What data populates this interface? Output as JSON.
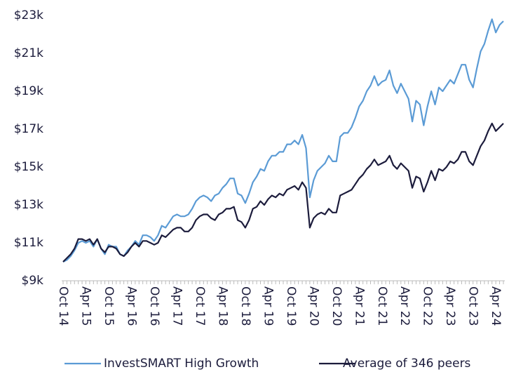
{
  "chart_data": {
    "type": "line",
    "categories": [
      "Oct 14",
      null,
      null,
      null,
      null,
      null,
      "Apr 15",
      null,
      null,
      null,
      null,
      null,
      "Oct 15",
      null,
      null,
      null,
      null,
      null,
      "Apr 16",
      null,
      null,
      null,
      null,
      null,
      "Oct 16",
      null,
      null,
      null,
      null,
      null,
      "Apr 17",
      null,
      null,
      null,
      null,
      null,
      "Oct 17",
      null,
      null,
      null,
      null,
      null,
      "Apr 18",
      null,
      null,
      null,
      null,
      null,
      "Oct 18",
      null,
      null,
      null,
      null,
      null,
      "Apr 19",
      null,
      null,
      null,
      null,
      null,
      "Oct 19",
      null,
      null,
      null,
      null,
      null,
      "Apr 20",
      null,
      null,
      null,
      null,
      null,
      "Oct 20",
      null,
      null,
      null,
      null,
      null,
      "Apr 21",
      null,
      null,
      null,
      null,
      null,
      "Oct 21",
      null,
      null,
      null,
      null,
      null,
      "Apr 22",
      null,
      null,
      null,
      null,
      null,
      "Oct 22",
      null,
      null,
      null,
      null,
      null,
      "Apr 23",
      null,
      null,
      null,
      null,
      null,
      "Oct 23",
      null,
      null,
      null,
      null,
      null,
      "Apr 24",
      null,
      null
    ],
    "series": [
      {
        "name": "InvestSMART High Growth",
        "color": "#5b9bd5",
        "values": [
          10000,
          10100,
          10300,
          10600,
          11000,
          11100,
          11000,
          11100,
          10800,
          11200,
          10700,
          10400,
          10900,
          10800,
          10800,
          10400,
          10300,
          10600,
          10800,
          11100,
          10900,
          11400,
          11400,
          11300,
          11100,
          11400,
          11900,
          11800,
          12100,
          12400,
          12500,
          12400,
          12400,
          12500,
          12800,
          13200,
          13400,
          13500,
          13400,
          13200,
          13500,
          13600,
          13900,
          14100,
          14400,
          14400,
          13600,
          13500,
          13100,
          13600,
          14200,
          14500,
          14900,
          14800,
          15300,
          15600,
          15600,
          15800,
          15800,
          16200,
          16200,
          16400,
          16200,
          16700,
          16000,
          13400,
          14300,
          14800,
          15000,
          15200,
          15600,
          15300,
          15300,
          16600,
          16800,
          16800,
          17100,
          17600,
          18200,
          18500,
          19000,
          19300,
          19800,
          19300,
          19500,
          19600,
          20100,
          19300,
          18900,
          19400,
          19000,
          18600,
          17400,
          18500,
          18300,
          17200,
          18200,
          19000,
          18300,
          19200,
          19000,
          19300,
          19600,
          19400,
          19900,
          20400,
          20400,
          19600,
          19200,
          20200,
          21100,
          21500,
          22200,
          22800,
          22100,
          22500,
          22700
        ]
      },
      {
        "name": "Average of 346 peers",
        "color": "#1c1c3c",
        "values": [
          10000,
          10200,
          10400,
          10700,
          11200,
          11200,
          11100,
          11200,
          10900,
          11200,
          10700,
          10500,
          10800,
          10800,
          10700,
          10400,
          10300,
          10500,
          10800,
          11000,
          10800,
          11100,
          11100,
          11000,
          10900,
          11000,
          11400,
          11300,
          11500,
          11700,
          11800,
          11800,
          11600,
          11600,
          11800,
          12200,
          12400,
          12500,
          12500,
          12300,
          12200,
          12500,
          12600,
          12800,
          12800,
          12900,
          12200,
          12100,
          11800,
          12200,
          12800,
          12900,
          13200,
          13000,
          13300,
          13500,
          13400,
          13600,
          13500,
          13800,
          13900,
          14000,
          13800,
          14200,
          13900,
          11800,
          12300,
          12500,
          12600,
          12500,
          12800,
          12600,
          12600,
          13500,
          13600,
          13700,
          13800,
          14100,
          14400,
          14600,
          14900,
          15100,
          15400,
          15100,
          15200,
          15300,
          15600,
          15100,
          14900,
          15200,
          15000,
          14800,
          13900,
          14500,
          14400,
          13700,
          14200,
          14800,
          14300,
          14900,
          14800,
          15000,
          15300,
          15200,
          15400,
          15800,
          15800,
          15300,
          15100,
          15600,
          16100,
          16400,
          16900,
          17300,
          16900,
          17100,
          17300
        ]
      }
    ],
    "ylim": [
      9000,
      23000
    ],
    "yticks": [
      {
        "value": 9000,
        "label": "$9k"
      },
      {
        "value": 11000,
        "label": "$11k"
      },
      {
        "value": 13000,
        "label": "$13k"
      },
      {
        "value": 15000,
        "label": "$15k"
      },
      {
        "value": 17000,
        "label": "$17k"
      },
      {
        "value": 19000,
        "label": "$19k"
      },
      {
        "value": 21000,
        "label": "$21k"
      },
      {
        "value": 23000,
        "label": "$23k"
      }
    ],
    "grid": false,
    "legend": "bottom"
  }
}
